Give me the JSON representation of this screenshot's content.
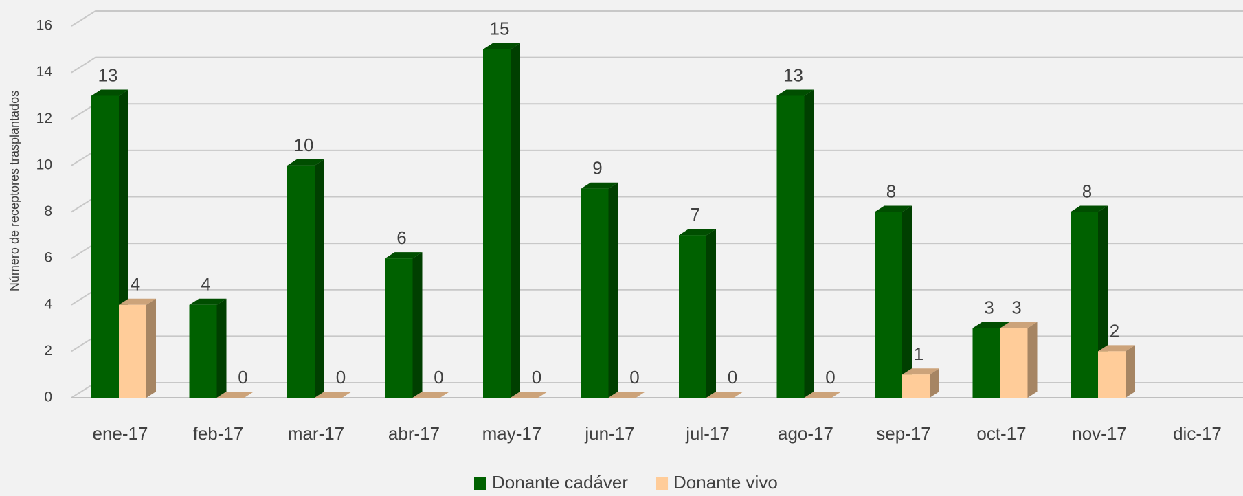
{
  "chart_data": {
    "type": "bar3d",
    "y_axis_label": "Número de receptores trasplantados",
    "categories": [
      "ene-17",
      "feb-17",
      "mar-17",
      "abr-17",
      "may-17",
      "jun-17",
      "jul-17",
      "ago-17",
      "sep-17",
      "oct-17",
      "nov-17",
      "dic-17"
    ],
    "series": [
      {
        "name": "Donante cadáver",
        "color": "#006100",
        "values": [
          13,
          4,
          10,
          6,
          15,
          9,
          7,
          13,
          8,
          3,
          8,
          null
        ]
      },
      {
        "name": "Donante vivo",
        "color": "#ffcc99",
        "values": [
          4,
          0,
          0,
          0,
          0,
          0,
          0,
          0,
          1,
          3,
          2,
          null
        ]
      }
    ],
    "ylim": [
      0,
      16
    ],
    "yticks": [
      0,
      2,
      4,
      6,
      8,
      10,
      12,
      14,
      16
    ],
    "grid": true,
    "legend": "bottom"
  }
}
